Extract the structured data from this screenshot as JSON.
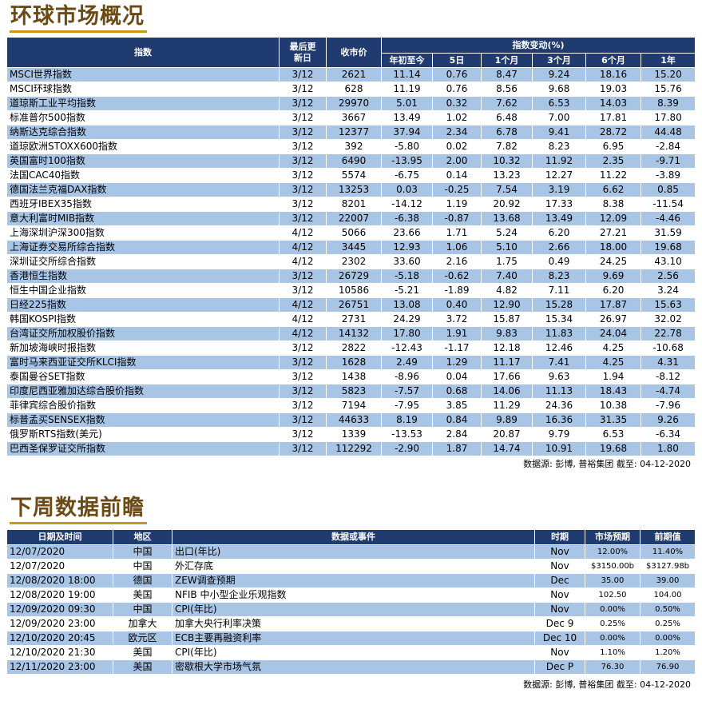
{
  "section1": {
    "title": "环球市场概况",
    "headers": {
      "index": "指数",
      "last_update": "最后更新日",
      "close": "收市价",
      "change_group": "指数变动(%)",
      "periods": [
        "年初至今",
        "5日",
        "1个月",
        "3个月",
        "6个月",
        "1年"
      ]
    },
    "rows": [
      [
        "MSCI世界指数",
        "3/12",
        "2621",
        "11.14",
        "0.76",
        "8.47",
        "9.24",
        "18.16",
        "15.20"
      ],
      [
        "MSCI环球指数",
        "3/12",
        "628",
        "11.19",
        "0.76",
        "8.56",
        "9.68",
        "19.03",
        "15.76"
      ],
      [
        "道琼斯工业平均指数",
        "3/12",
        "29970",
        "5.01",
        "0.32",
        "7.62",
        "6.53",
        "14.03",
        "8.39"
      ],
      [
        "标准普尔500指数",
        "3/12",
        "3667",
        "13.49",
        "1.02",
        "6.48",
        "7.00",
        "17.81",
        "17.80"
      ],
      [
        "纳斯达克综合指数",
        "3/12",
        "12377",
        "37.94",
        "2.34",
        "6.78",
        "9.41",
        "28.72",
        "44.48"
      ],
      [
        "道琼欧洲STOXX600指数",
        "3/12",
        "392",
        "-5.80",
        "0.02",
        "7.82",
        "8.23",
        "6.95",
        "-2.84"
      ],
      [
        "英国富时100指数",
        "3/12",
        "6490",
        "-13.95",
        "2.00",
        "10.32",
        "11.92",
        "2.35",
        "-9.71"
      ],
      [
        "法国CAC40指数",
        "3/12",
        "5574",
        "-6.75",
        "0.14",
        "13.23",
        "12.27",
        "11.22",
        "-3.89"
      ],
      [
        "德国法兰克福DAX指数",
        "3/12",
        "13253",
        "0.03",
        "-0.25",
        "7.54",
        "3.19",
        "6.62",
        "0.85"
      ],
      [
        "西班牙IBEX35指数",
        "3/12",
        "8201",
        "-14.12",
        "1.19",
        "20.92",
        "17.33",
        "8.38",
        "-11.54"
      ],
      [
        "意大利富时MIB指数",
        "3/12",
        "22007",
        "-6.38",
        "-0.87",
        "13.68",
        "13.49",
        "12.09",
        "-4.46"
      ],
      [
        "上海深圳沪深300指数",
        "4/12",
        "5066",
        "23.66",
        "1.71",
        "5.24",
        "6.20",
        "27.21",
        "31.59"
      ],
      [
        "上海证券交易所综合指数",
        "4/12",
        "3445",
        "12.93",
        "1.06",
        "5.10",
        "2.66",
        "18.00",
        "19.68"
      ],
      [
        "深圳证交所综合指数",
        "4/12",
        "2302",
        "33.60",
        "2.16",
        "1.75",
        "0.49",
        "24.25",
        "43.10"
      ],
      [
        "香港恒生指数",
        "3/12",
        "26729",
        "-5.18",
        "-0.62",
        "7.40",
        "8.23",
        "9.69",
        "2.56"
      ],
      [
        "恒生中国企业指数",
        "3/12",
        "10586",
        "-5.21",
        "-1.89",
        "4.82",
        "7.11",
        "6.20",
        "3.24"
      ],
      [
        "日经225指数",
        "4/12",
        "26751",
        "13.08",
        "0.40",
        "12.90",
        "15.28",
        "17.87",
        "15.63"
      ],
      [
        "韩国KOSPI指数",
        "4/12",
        "2731",
        "24.29",
        "3.72",
        "15.87",
        "15.34",
        "26.97",
        "32.02"
      ],
      [
        "台湾证交所加权股价指数",
        "4/12",
        "14132",
        "17.80",
        "1.91",
        "9.83",
        "11.83",
        "24.04",
        "22.78"
      ],
      [
        "新加坡海峡时报指数",
        "3/12",
        "2822",
        "-12.43",
        "-1.17",
        "12.18",
        "12.46",
        "4.25",
        "-10.68"
      ],
      [
        "富时马来西亚证交所KLCI指数",
        "3/12",
        "1628",
        "2.49",
        "1.29",
        "11.17",
        "7.41",
        "4.25",
        "4.31"
      ],
      [
        "泰国曼谷SET指数",
        "3/12",
        "1438",
        "-8.96",
        "0.04",
        "17.66",
        "9.63",
        "1.94",
        "-8.12"
      ],
      [
        "印度尼西亚雅加达综合股价指数",
        "3/12",
        "5823",
        "-7.57",
        "0.68",
        "14.06",
        "11.13",
        "18.43",
        "-4.74"
      ],
      [
        "菲律宾综合股价指数",
        "3/12",
        "7194",
        "-7.95",
        "3.85",
        "11.29",
        "24.36",
        "10.38",
        "-7.96"
      ],
      [
        "标普孟买SENSEX指数",
        "3/12",
        "44633",
        "8.19",
        "0.84",
        "9.89",
        "16.36",
        "31.35",
        "9.26"
      ],
      [
        "俄罗斯RTS指数(美元)",
        "3/12",
        "1339",
        "-13.53",
        "2.84",
        "20.87",
        "9.79",
        "6.53",
        "-6.34"
      ],
      [
        "巴西圣保罗证交所指数",
        "3/12",
        "112292",
        "-2.90",
        "1.87",
        "14.74",
        "10.91",
        "19.68",
        "1.80"
      ]
    ],
    "source": "数据源: 彭博, 普裕集团 截至: 04-12-2020"
  },
  "section2": {
    "title": "下周数据前瞻",
    "headers": [
      "日期及时间",
      "地区",
      "数据或事件",
      "时期",
      "市场预期",
      "前期值"
    ],
    "rows": [
      [
        "12/07/2020",
        "中国",
        "出口(年比)",
        "Nov",
        "12.00%",
        "11.40%"
      ],
      [
        "12/07/2020",
        "中国",
        "外汇存底",
        "Nov",
        "$3150.00b",
        "$3127.98b"
      ],
      [
        "12/08/2020 18:00",
        "德国",
        "ZEW调查预期",
        "Dec",
        "35.00",
        "39.00"
      ],
      [
        "12/08/2020 19:00",
        "美国",
        "NFIB 中小型企业乐观指数",
        "Nov",
        "102.50",
        "104.00"
      ],
      [
        "12/09/2020 09:30",
        "中国",
        "CPI(年比)",
        "Nov",
        "0.00%",
        "0.50%"
      ],
      [
        "12/09/2020 23:00",
        "加拿大",
        "加拿大央行利率决策",
        "Dec 9",
        "0.25%",
        "0.25%"
      ],
      [
        "12/10/2020 20:45",
        "欧元区",
        "ECB主要再融资利率",
        "Dec 10",
        "0.00%",
        "0.00%"
      ],
      [
        "12/10/2020 21:30",
        "美国",
        "CPI(年比)",
        "Nov",
        "1.10%",
        "1.20%"
      ],
      [
        "12/11/2020 23:00",
        "美国",
        "密歇根大学市场气氛",
        "Dec P",
        "76.30",
        "76.90"
      ]
    ],
    "source": "数据源: 彭博, 普裕集团 截至: 04-12-2020"
  }
}
